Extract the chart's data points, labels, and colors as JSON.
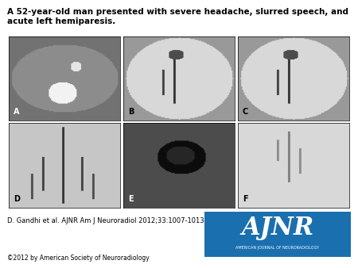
{
  "title": "A 52-year-old man presented with severe headache, slurred speech, and acute left hemiparesis.",
  "title_fontsize": 7.5,
  "title_fontweight": "bold",
  "citation": "D. Gandhi et al. AJNR Am J Neuroradiol 2012;33:1007-1013",
  "citation_fontsize": 6.0,
  "copyright": "©2012 by American Society of Neuroradiology",
  "copyright_fontsize": 5.5,
  "panels": [
    "A",
    "B",
    "C",
    "D",
    "E",
    "F"
  ],
  "panel_label_fontsize": 7,
  "background_color": "#ffffff",
  "border_color": "#000000",
  "ajnr_bg_color": "#1a6faf",
  "ajnr_text_color": "#ffffff",
  "ajnr_text": "AJNR",
  "ajnr_subtext": "AMERICAN JOURNAL OF NEURORADIOLOGY",
  "fig_width": 4.5,
  "fig_height": 3.38,
  "panel_colors": {
    "A": "#888888",
    "B": "#aaaaaa",
    "C": "#aaaaaa",
    "D": "#999999",
    "E": "#444444",
    "F": "#cccccc"
  }
}
